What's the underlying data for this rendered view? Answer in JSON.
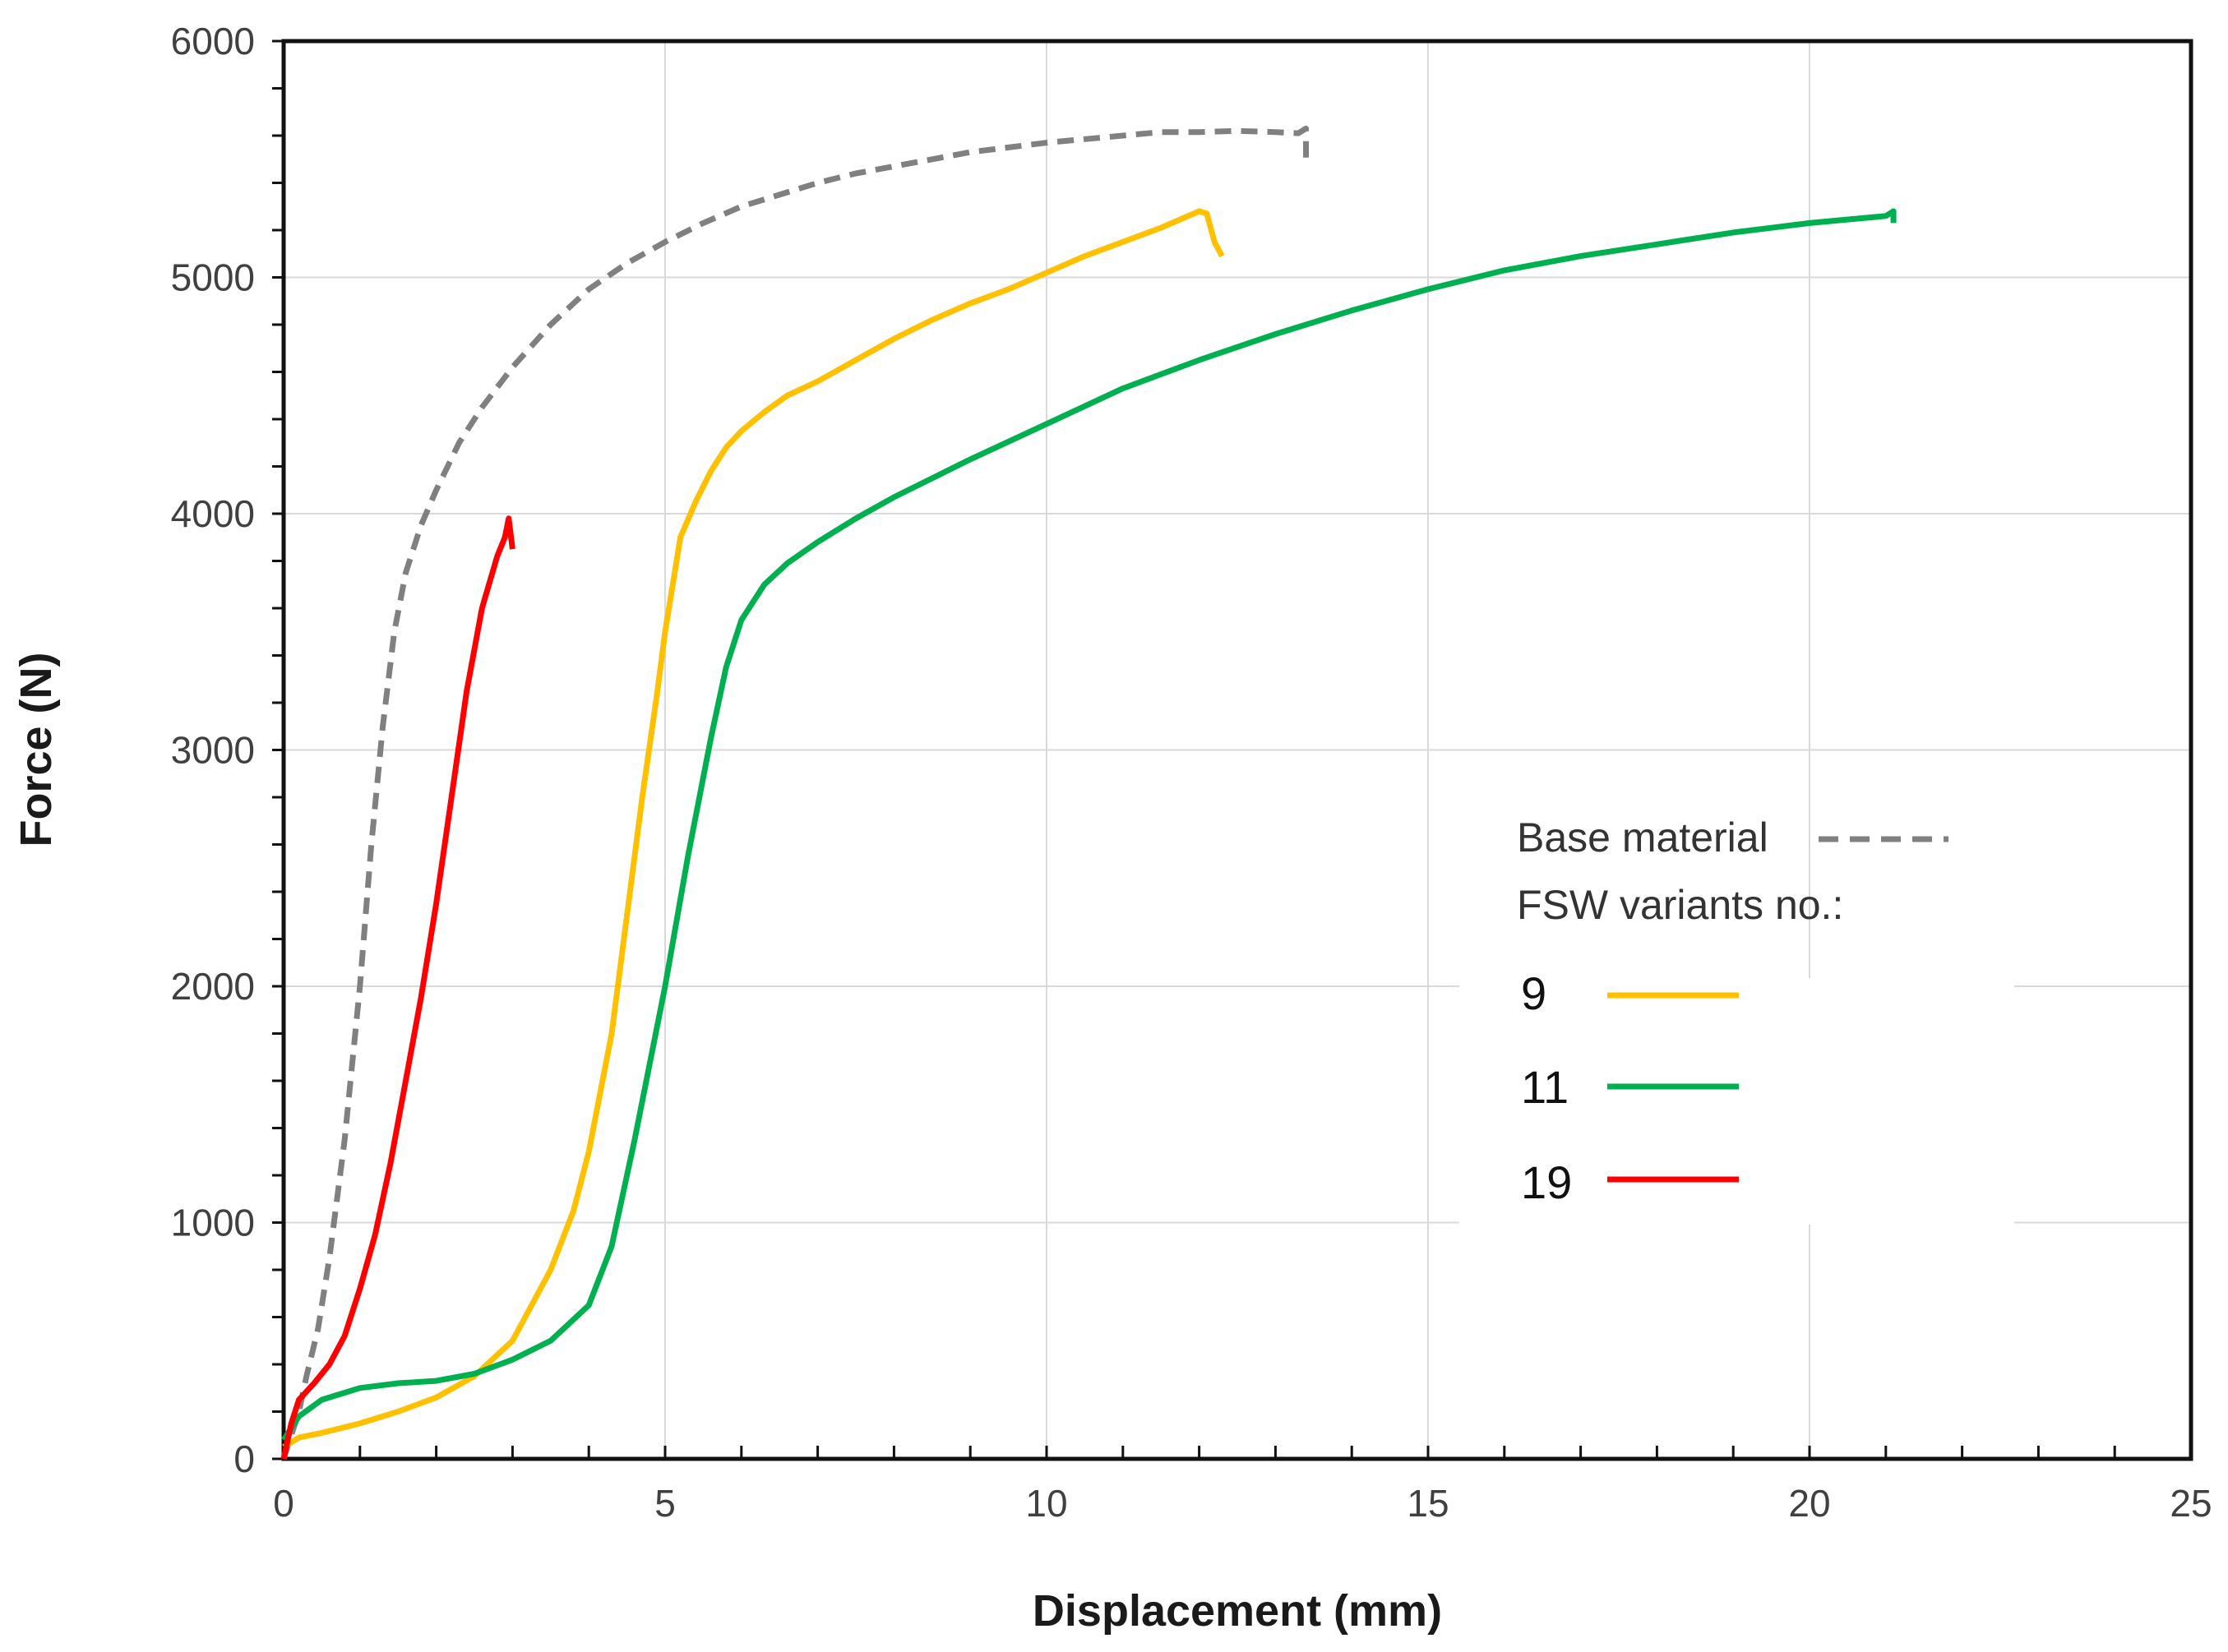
{
  "chart_data": {
    "type": "line",
    "title": "",
    "xlabel": "Displacement (mm)",
    "ylabel": "Force (N)",
    "xlim": [
      0,
      25
    ],
    "ylim": [
      0,
      6000
    ],
    "xticks": [
      0,
      5,
      10,
      15,
      20,
      25
    ],
    "yticks": [
      0,
      1000,
      2000,
      3000,
      4000,
      5000,
      6000
    ],
    "grid": true,
    "legend_position": "center-right",
    "legend": {
      "base_label": "Base material",
      "group_label": "FSW variants no.:",
      "entries": [
        "9",
        "11",
        "19"
      ]
    },
    "series": [
      {
        "name": "Base material",
        "style": "dashed",
        "color": "#808080",
        "x": [
          0,
          0.1,
          0.2,
          0.3,
          0.45,
          0.6,
          0.8,
          1.0,
          1.15,
          1.3,
          1.45,
          1.6,
          1.8,
          2.0,
          2.3,
          2.6,
          3.0,
          3.5,
          4.0,
          4.5,
          5.0,
          5.5,
          6.0,
          6.5,
          7.0,
          7.5,
          8.0,
          8.5,
          9.0,
          9.5,
          10.0,
          10.5,
          11.0,
          11.5,
          12.0,
          12.5,
          13.0,
          13.3,
          13.4,
          13.4
        ],
        "values": [
          0,
          100,
          200,
          350,
          550,
          850,
          1350,
          2000,
          2600,
          3100,
          3500,
          3750,
          3950,
          4100,
          4300,
          4450,
          4620,
          4800,
          4950,
          5060,
          5150,
          5230,
          5300,
          5350,
          5400,
          5440,
          5470,
          5500,
          5530,
          5550,
          5570,
          5585,
          5600,
          5615,
          5615,
          5620,
          5615,
          5610,
          5630,
          5480
        ]
      },
      {
        "name": "9",
        "style": "solid",
        "color": "#ffc000",
        "x": [
          0,
          0.2,
          0.5,
          1.0,
          1.5,
          2.0,
          2.5,
          3.0,
          3.5,
          3.8,
          4.0,
          4.3,
          4.5,
          4.7,
          4.9,
          5.0,
          5.2,
          5.4,
          5.6,
          5.8,
          6.0,
          6.3,
          6.6,
          7.0,
          7.5,
          8.0,
          8.5,
          9.0,
          9.5,
          10.0,
          10.5,
          11.0,
          11.5,
          12.0,
          12.1,
          12.2,
          12.3
        ],
        "values": [
          50,
          90,
          110,
          150,
          200,
          260,
          350,
          500,
          800,
          1050,
          1300,
          1800,
          2300,
          2800,
          3250,
          3500,
          3900,
          4050,
          4180,
          4280,
          4350,
          4430,
          4500,
          4560,
          4650,
          4740,
          4820,
          4890,
          4950,
          5020,
          5090,
          5150,
          5210,
          5280,
          5270,
          5150,
          5090
        ]
      },
      {
        "name": "11",
        "style": "solid",
        "color": "#00b050",
        "x": [
          0,
          0.2,
          0.5,
          1.0,
          1.5,
          2.0,
          2.5,
          3.0,
          3.5,
          4.0,
          4.3,
          4.6,
          5.0,
          5.3,
          5.6,
          5.8,
          6.0,
          6.3,
          6.6,
          7.0,
          7.5,
          8.0,
          9.0,
          10.0,
          11.0,
          12.0,
          13.0,
          14.0,
          15.0,
          16.0,
          17.0,
          18.0,
          19.0,
          20.0,
          21.0,
          21.1,
          21.1
        ],
        "values": [
          80,
          180,
          250,
          300,
          320,
          330,
          360,
          420,
          500,
          650,
          900,
          1350,
          2000,
          2550,
          3050,
          3350,
          3550,
          3700,
          3790,
          3880,
          3980,
          4070,
          4230,
          4380,
          4530,
          4650,
          4760,
          4860,
          4950,
          5030,
          5090,
          5140,
          5190,
          5230,
          5260,
          5280,
          5230
        ]
      },
      {
        "name": "19",
        "style": "solid",
        "color": "#ff0000",
        "x": [
          0,
          0.1,
          0.2,
          0.4,
          0.6,
          0.8,
          1.0,
          1.2,
          1.4,
          1.6,
          1.8,
          2.0,
          2.2,
          2.4,
          2.6,
          2.8,
          2.9,
          2.95,
          3.0
        ],
        "values": [
          0,
          150,
          250,
          320,
          400,
          520,
          720,
          950,
          1250,
          1600,
          1950,
          2350,
          2800,
          3250,
          3600,
          3820,
          3900,
          3980,
          3850
        ]
      }
    ]
  }
}
